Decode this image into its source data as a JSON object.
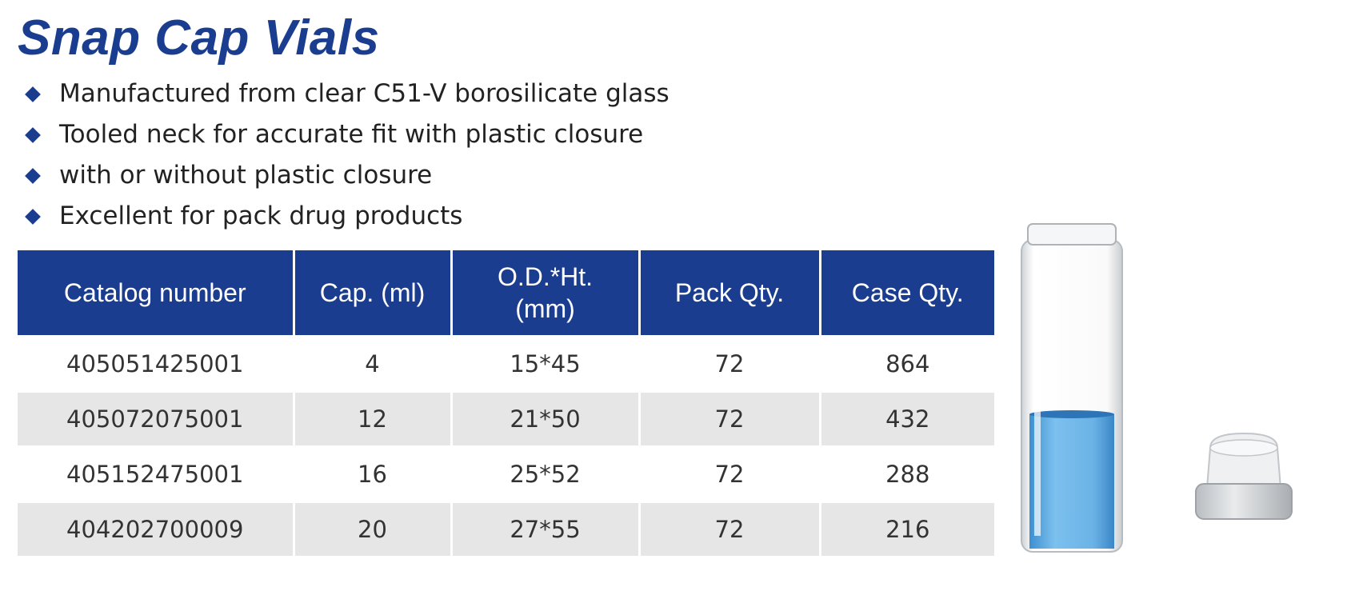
{
  "title": "Snap Cap Vials",
  "features": [
    "Manufactured from clear C51-V borosilicate glass",
    "Tooled neck for accurate fit with plastic closure",
    "with or without plastic closure",
    "Excellent for pack drug products"
  ],
  "table": {
    "headers": [
      "Catalog number",
      "Cap. (ml)",
      "O.D.*Ht.\n(mm)",
      "Pack Qty.",
      "Case Qty."
    ],
    "rows": [
      [
        "405051425001",
        "4",
        "15*45",
        "72",
        "864"
      ],
      [
        "405072075001",
        "12",
        "21*50",
        "72",
        "432"
      ],
      [
        "405152475001",
        "16",
        "25*52",
        "72",
        "288"
      ],
      [
        "404202700009",
        "20",
        "27*55",
        "72",
        "216"
      ]
    ]
  },
  "colors": {
    "brand_blue": "#1b3d8f",
    "row_alt": "#e6e6e6",
    "liquid": "#5aa8e0"
  },
  "images": {
    "product": "glass snap cap vial with blue liquid and plastic snap cap closure"
  }
}
